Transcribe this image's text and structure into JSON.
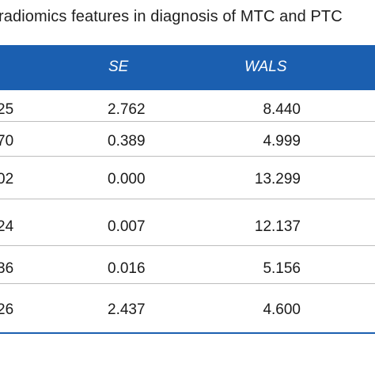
{
  "caption": "radiomics features in diagnosis of MTC and PTC",
  "header": {
    "col_se": "SE",
    "col_wals": "WALS"
  },
  "rows": [
    {
      "b": "25",
      "se": "2.762",
      "wals": "8.440"
    },
    {
      "b": "70",
      "se": "0.389",
      "wals": "4.999"
    },
    {
      "b": "02",
      "se": "0.000",
      "wals": "13.299"
    },
    {
      "b": "24",
      "se": "0.007",
      "wals": "12.137"
    },
    {
      "b": "36",
      "se": "0.016",
      "wals": "5.156"
    },
    {
      "b": "26",
      "se": "2.437",
      "wals": "4.600"
    }
  ],
  "colors": {
    "header_bg": "#1b5fb0",
    "divider": "#bdbdbd"
  }
}
